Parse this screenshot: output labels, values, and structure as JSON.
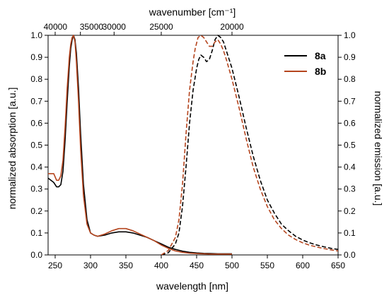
{
  "chart_data": {
    "type": "line",
    "title": "",
    "xlabel": "wavelength [nm]",
    "ylabel_left": "normalized absorption [a.u.]",
    "ylabel_right": "normalized emission [a.u.]",
    "x2label": "wavenumber [cm⁻¹]",
    "xlim": [
      240,
      650
    ],
    "ylim": [
      0,
      1.0
    ],
    "x_ticks": [
      250,
      300,
      350,
      400,
      450,
      500,
      550,
      600,
      650
    ],
    "y_ticks": [
      "0.0",
      "0.1",
      "0.2",
      "0.3",
      "0.4",
      "0.5",
      "0.6",
      "0.7",
      "0.8",
      "0.9",
      "1.0"
    ],
    "x2_ticks": [
      {
        "label": "40000",
        "wavelength_nm": 250.0
      },
      {
        "label": "35000",
        "wavelength_nm": 285.7
      },
      {
        "label": "30000",
        "wavelength_nm": 333.3
      },
      {
        "label": "25000",
        "wavelength_nm": 400.0
      },
      {
        "label": "20000",
        "wavelength_nm": 500.0
      }
    ],
    "legend": {
      "position": "top-right",
      "entries": [
        "8a",
        "8b"
      ]
    },
    "series": [
      {
        "name": "8a",
        "color": "#000000",
        "kind": "absorption",
        "dash": "solid",
        "x": [
          240,
          248,
          252,
          255,
          258,
          261,
          264,
          267,
          270,
          272,
          274,
          276,
          278,
          280,
          283,
          286,
          290,
          295,
          300,
          305,
          310,
          320,
          330,
          340,
          350,
          360,
          370,
          380,
          390,
          400,
          410,
          420,
          430,
          440,
          450,
          460,
          470,
          480,
          490,
          500
        ],
        "y": [
          0.35,
          0.33,
          0.31,
          0.31,
          0.32,
          0.38,
          0.52,
          0.7,
          0.86,
          0.94,
          0.98,
          1.0,
          0.98,
          0.92,
          0.76,
          0.55,
          0.32,
          0.16,
          0.1,
          0.09,
          0.085,
          0.09,
          0.1,
          0.105,
          0.105,
          0.1,
          0.09,
          0.08,
          0.065,
          0.05,
          0.035,
          0.025,
          0.017,
          0.012,
          0.009,
          0.007,
          0.006,
          0.005,
          0.005,
          0.005
        ]
      },
      {
        "name": "8b",
        "color": "#B5451E",
        "kind": "absorption",
        "dash": "solid",
        "x": [
          240,
          248,
          252,
          255,
          258,
          261,
          264,
          267,
          270,
          272,
          274,
          276,
          278,
          280,
          283,
          286,
          290,
          295,
          300,
          305,
          310,
          320,
          330,
          340,
          350,
          360,
          370,
          380,
          390,
          400,
          410,
          420,
          430,
          440,
          450,
          460,
          470,
          480,
          490,
          500
        ],
        "y": [
          0.37,
          0.37,
          0.34,
          0.34,
          0.36,
          0.43,
          0.58,
          0.76,
          0.9,
          0.96,
          0.99,
          1.0,
          0.97,
          0.88,
          0.7,
          0.48,
          0.27,
          0.14,
          0.1,
          0.09,
          0.085,
          0.095,
          0.11,
          0.12,
          0.12,
          0.11,
          0.095,
          0.08,
          0.065,
          0.045,
          0.03,
          0.018,
          0.012,
          0.008,
          0.006,
          0.005,
          0.004,
          0.004,
          0.004,
          0.004
        ]
      },
      {
        "name": "8a",
        "color": "#000000",
        "kind": "emission",
        "dash": "dashed",
        "x": [
          400,
          410,
          420,
          425,
          430,
          435,
          440,
          445,
          450,
          453,
          456,
          460,
          464,
          468,
          472,
          476,
          480,
          484,
          488,
          492,
          500,
          510,
          520,
          530,
          540,
          550,
          560,
          570,
          580,
          590,
          600,
          610,
          620,
          630,
          640,
          650
        ],
        "y": [
          0.0,
          0.01,
          0.05,
          0.1,
          0.22,
          0.4,
          0.6,
          0.75,
          0.85,
          0.89,
          0.91,
          0.9,
          0.88,
          0.89,
          0.93,
          0.98,
          1.0,
          0.99,
          0.97,
          0.93,
          0.85,
          0.72,
          0.58,
          0.45,
          0.34,
          0.25,
          0.19,
          0.14,
          0.11,
          0.085,
          0.068,
          0.055,
          0.045,
          0.037,
          0.03,
          0.025
        ]
      },
      {
        "name": "8b",
        "color": "#B5451E",
        "kind": "emission",
        "dash": "dashed",
        "x": [
          400,
          410,
          420,
          425,
          430,
          435,
          440,
          445,
          448,
          452,
          456,
          460,
          464,
          468,
          472,
          476,
          480,
          484,
          488,
          492,
          500,
          510,
          520,
          530,
          540,
          550,
          560,
          570,
          580,
          590,
          600,
          610,
          620,
          630,
          640,
          650
        ],
        "y": [
          0.0,
          0.02,
          0.08,
          0.16,
          0.32,
          0.55,
          0.75,
          0.88,
          0.94,
          0.99,
          1.0,
          0.99,
          0.97,
          0.95,
          0.95,
          0.97,
          0.98,
          0.96,
          0.93,
          0.89,
          0.8,
          0.67,
          0.53,
          0.4,
          0.3,
          0.22,
          0.16,
          0.12,
          0.09,
          0.07,
          0.055,
          0.044,
          0.036,
          0.029,
          0.023,
          0.018
        ]
      }
    ]
  }
}
